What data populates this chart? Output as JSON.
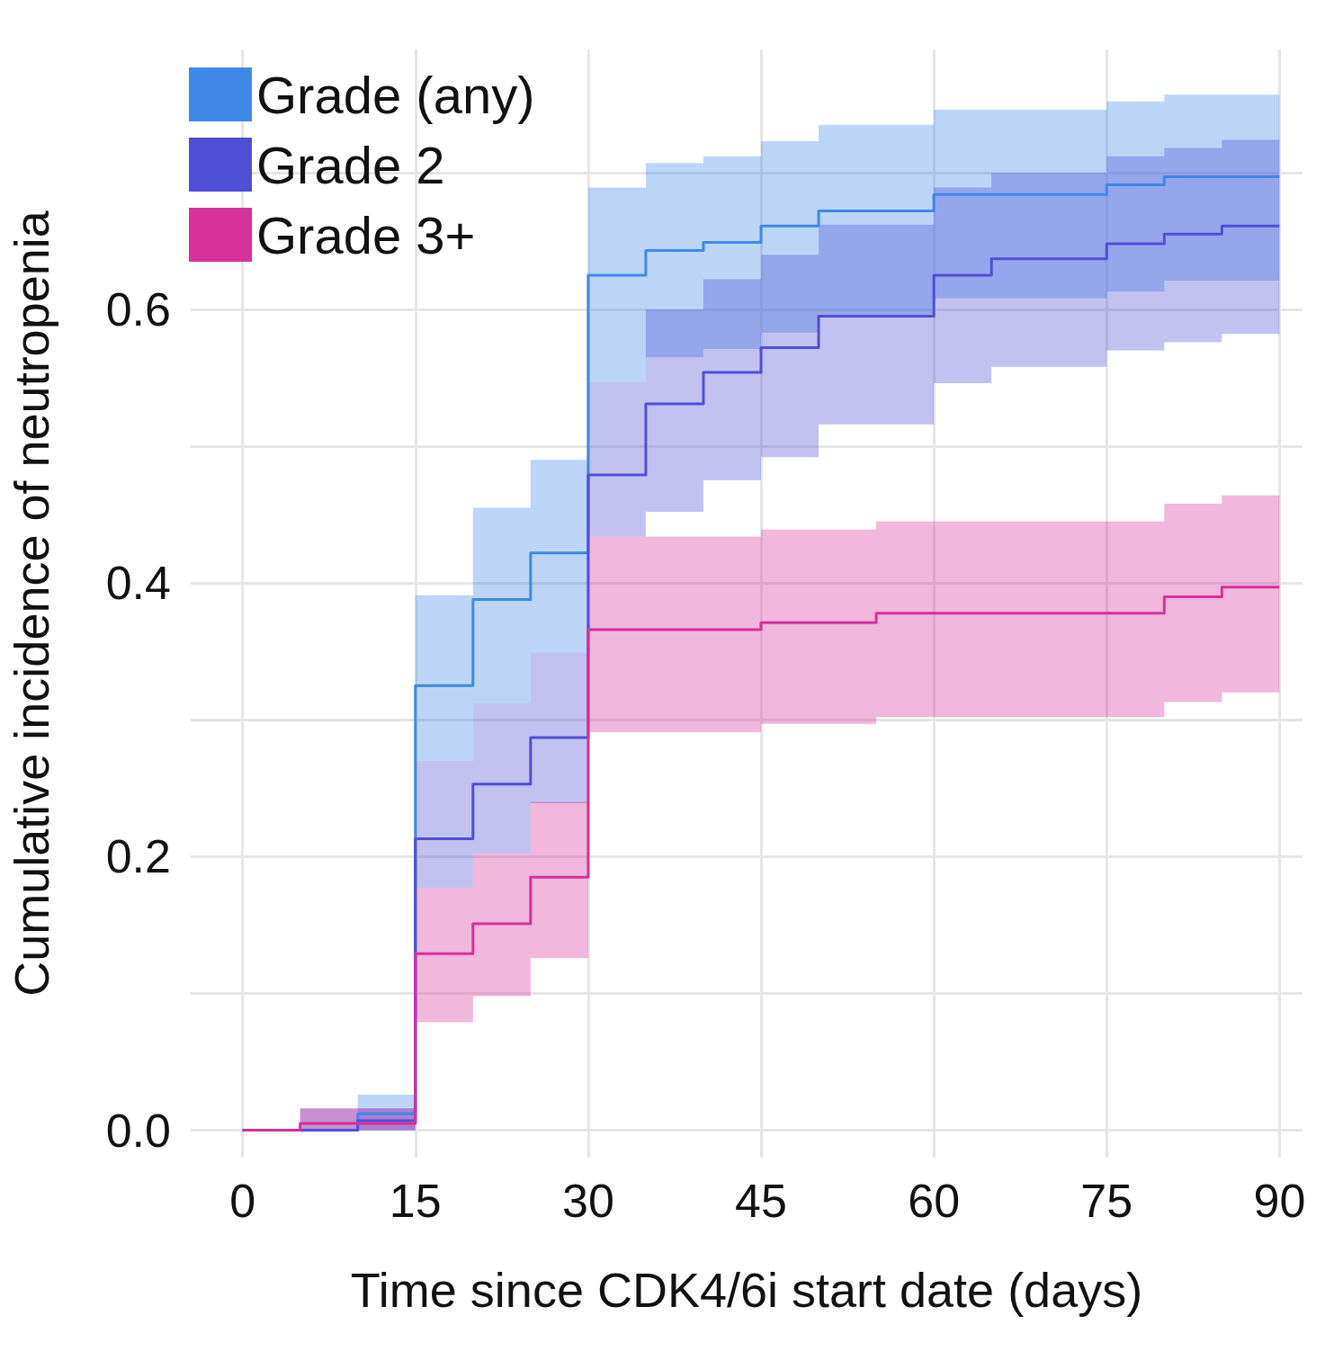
{
  "chart_data": {
    "type": "step",
    "xlabel": "Time since CDK4/6i start date (days)",
    "ylabel": "Cumulative incidence of neutropenia",
    "xlim": [
      -4.5,
      92
    ],
    "xticks": [
      0,
      15,
      30,
      45,
      60,
      75,
      90
    ],
    "ylim": [
      -0.02,
      0.79
    ],
    "yticks": [
      {
        "value": 0,
        "label": "0.0"
      },
      {
        "value": 0.1,
        "label": null
      },
      {
        "value": 0.2,
        "label": "0.2"
      },
      {
        "value": 0.3,
        "label": null
      },
      {
        "value": 0.4,
        "label": "0.4"
      },
      {
        "value": 0.5,
        "label": null
      },
      {
        "value": 0.6,
        "label": "0.6"
      },
      {
        "value": 0.7,
        "label": null
      }
    ],
    "grid": true,
    "legend": "top left",
    "marker": "none",
    "line_style": "solid",
    "series": [
      {
        "name": "Grade (any)",
        "color": "#3f88e8",
        "x": [
          0,
          10,
          15,
          20,
          25,
          30,
          35,
          40,
          45,
          50,
          60,
          75,
          80,
          90
        ],
        "values": [
          0,
          0.012,
          0.325,
          0.388,
          0.422,
          0.625,
          0.643,
          0.649,
          0.661,
          0.672,
          0.684,
          0.691,
          0.697,
          0.697
        ],
        "upper": [
          0,
          0.026,
          0.391,
          0.455,
          0.49,
          0.689,
          0.707,
          0.712,
          0.723,
          0.735,
          0.746,
          0.752,
          0.757,
          0.757
        ],
        "lower": [
          0,
          0,
          0.27,
          0.312,
          0.349,
          0.547,
          0.565,
          0.571,
          0.583,
          0.596,
          0.608,
          0.613,
          0.621,
          0.621
        ]
      },
      {
        "name": "Grade 2",
        "color": "#4f4fd6",
        "x": [
          0,
          5,
          10,
          15,
          20,
          25,
          30,
          35,
          40,
          45,
          50,
          60,
          65,
          75,
          80,
          85,
          90
        ],
        "values": [
          0,
          0,
          0.007,
          0.213,
          0.253,
          0.287,
          0.479,
          0.531,
          0.554,
          0.572,
          0.595,
          0.625,
          0.637,
          0.648,
          0.655,
          0.661,
          0.661
        ],
        "upper": [
          0,
          0.016,
          0.016,
          0.27,
          0.312,
          0.349,
          0.547,
          0.6,
          0.622,
          0.64,
          0.662,
          0.689,
          0.7,
          0.712,
          0.718,
          0.724,
          0.724
        ],
        "lower": [
          0,
          0,
          0,
          0.177,
          0.202,
          0.239,
          0.434,
          0.452,
          0.475,
          0.492,
          0.516,
          0.546,
          0.558,
          0.57,
          0.576,
          0.582,
          0.582
        ]
      },
      {
        "name": "Grade 3+",
        "color": "#d6309a",
        "x": [
          0,
          5,
          15,
          20,
          25,
          30,
          35,
          45,
          55,
          80,
          85,
          90
        ],
        "values": [
          0,
          0.005,
          0.129,
          0.151,
          0.185,
          0.366,
          0.366,
          0.371,
          0.378,
          0.39,
          0.397,
          0.397
        ],
        "upper": [
          0,
          0.016,
          0.177,
          0.202,
          0.24,
          0.434,
          0.434,
          0.439,
          0.445,
          0.458,
          0.464,
          0.464
        ],
        "lower": [
          0,
          0,
          0.079,
          0.098,
          0.126,
          0.291,
          0.291,
          0.297,
          0.302,
          0.313,
          0.32,
          0.32
        ]
      }
    ]
  }
}
